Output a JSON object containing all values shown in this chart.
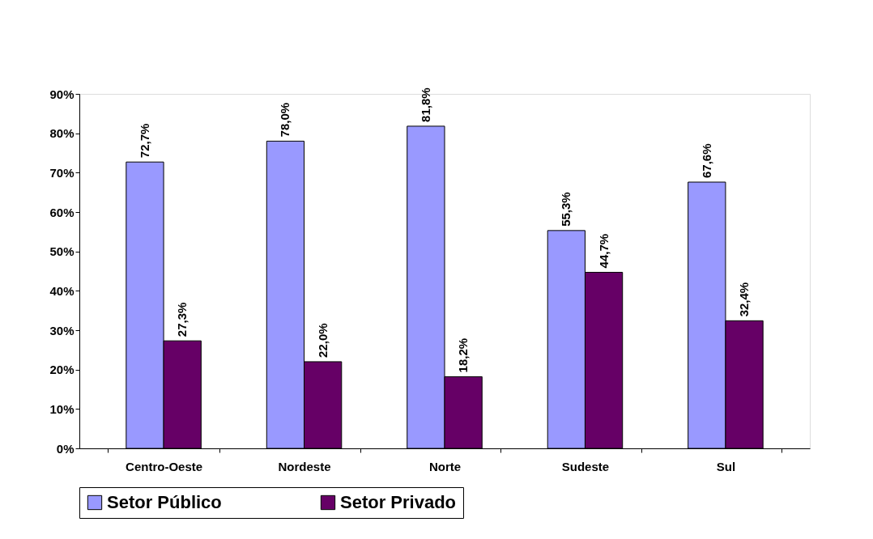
{
  "chart_data": {
    "type": "bar",
    "categories": [
      "Centro-Oeste",
      "Nordeste",
      "Norte",
      "Sudeste",
      "Sul"
    ],
    "series": [
      {
        "name": "Setor Público",
        "color": "#9999ff",
        "values": [
          72.7,
          78.0,
          81.8,
          55.3,
          67.6
        ],
        "value_labels": [
          "72,7%",
          "78,0%",
          "81,8%",
          "55,3%",
          "67,6%"
        ]
      },
      {
        "name": "Setor Privado",
        "color": "#660066",
        "values": [
          27.3,
          22.0,
          18.2,
          44.7,
          32.4
        ],
        "value_labels": [
          "27,3%",
          "22,0%",
          "18,2%",
          "44,7%",
          "32,4%"
        ]
      }
    ],
    "ylim": [
      0,
      90
    ],
    "yticks": [
      {
        "value": 0,
        "label": "0%"
      },
      {
        "value": 10,
        "label": "10%"
      },
      {
        "value": 20,
        "label": "20%"
      },
      {
        "value": 30,
        "label": "30%"
      },
      {
        "value": 40,
        "label": "40%"
      },
      {
        "value": 50,
        "label": "50%"
      },
      {
        "value": 60,
        "label": "60%"
      },
      {
        "value": 70,
        "label": "70%"
      },
      {
        "value": 80,
        "label": "80%"
      },
      {
        "value": 90,
        "label": "90%"
      }
    ],
    "grid": false,
    "legend": "bottom"
  }
}
